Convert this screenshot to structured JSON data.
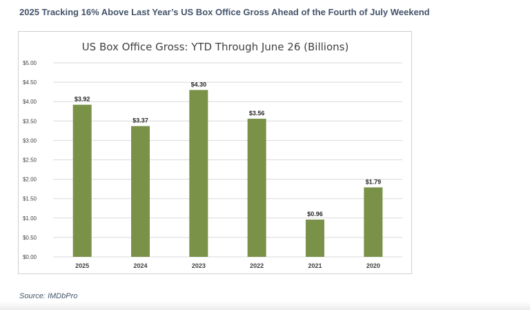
{
  "headline": "2025 Tracking 16% Above Last Year’s US Box Office Gross Ahead of the Fourth of July Weekend",
  "source": "Source: IMDbPro",
  "colors": {
    "bar": "#7a9148",
    "grid": "#d9d9d9",
    "text": "#404040",
    "headline": "#44546a"
  },
  "chart_data": {
    "type": "bar",
    "title": "US Box Office Gross: YTD Through June 26 (Billions)",
    "xlabel": "",
    "ylabel": "",
    "categories": [
      "2025",
      "2024",
      "2023",
      "2022",
      "2021",
      "2020"
    ],
    "values": [
      3.92,
      3.37,
      4.3,
      3.56,
      0.96,
      1.79
    ],
    "data_labels": [
      "$3.92",
      "$3.37",
      "$4.30",
      "$3.56",
      "$0.96",
      "$1.79"
    ],
    "ylim": [
      0,
      5
    ],
    "yticks": [
      "$0.00",
      "$0.50",
      "$1.00",
      "$1.50",
      "$2.00",
      "$2.50",
      "$3.00",
      "$3.50",
      "$4.00",
      "$4.50",
      "$5.00"
    ],
    "grid": true,
    "legend": "none"
  }
}
